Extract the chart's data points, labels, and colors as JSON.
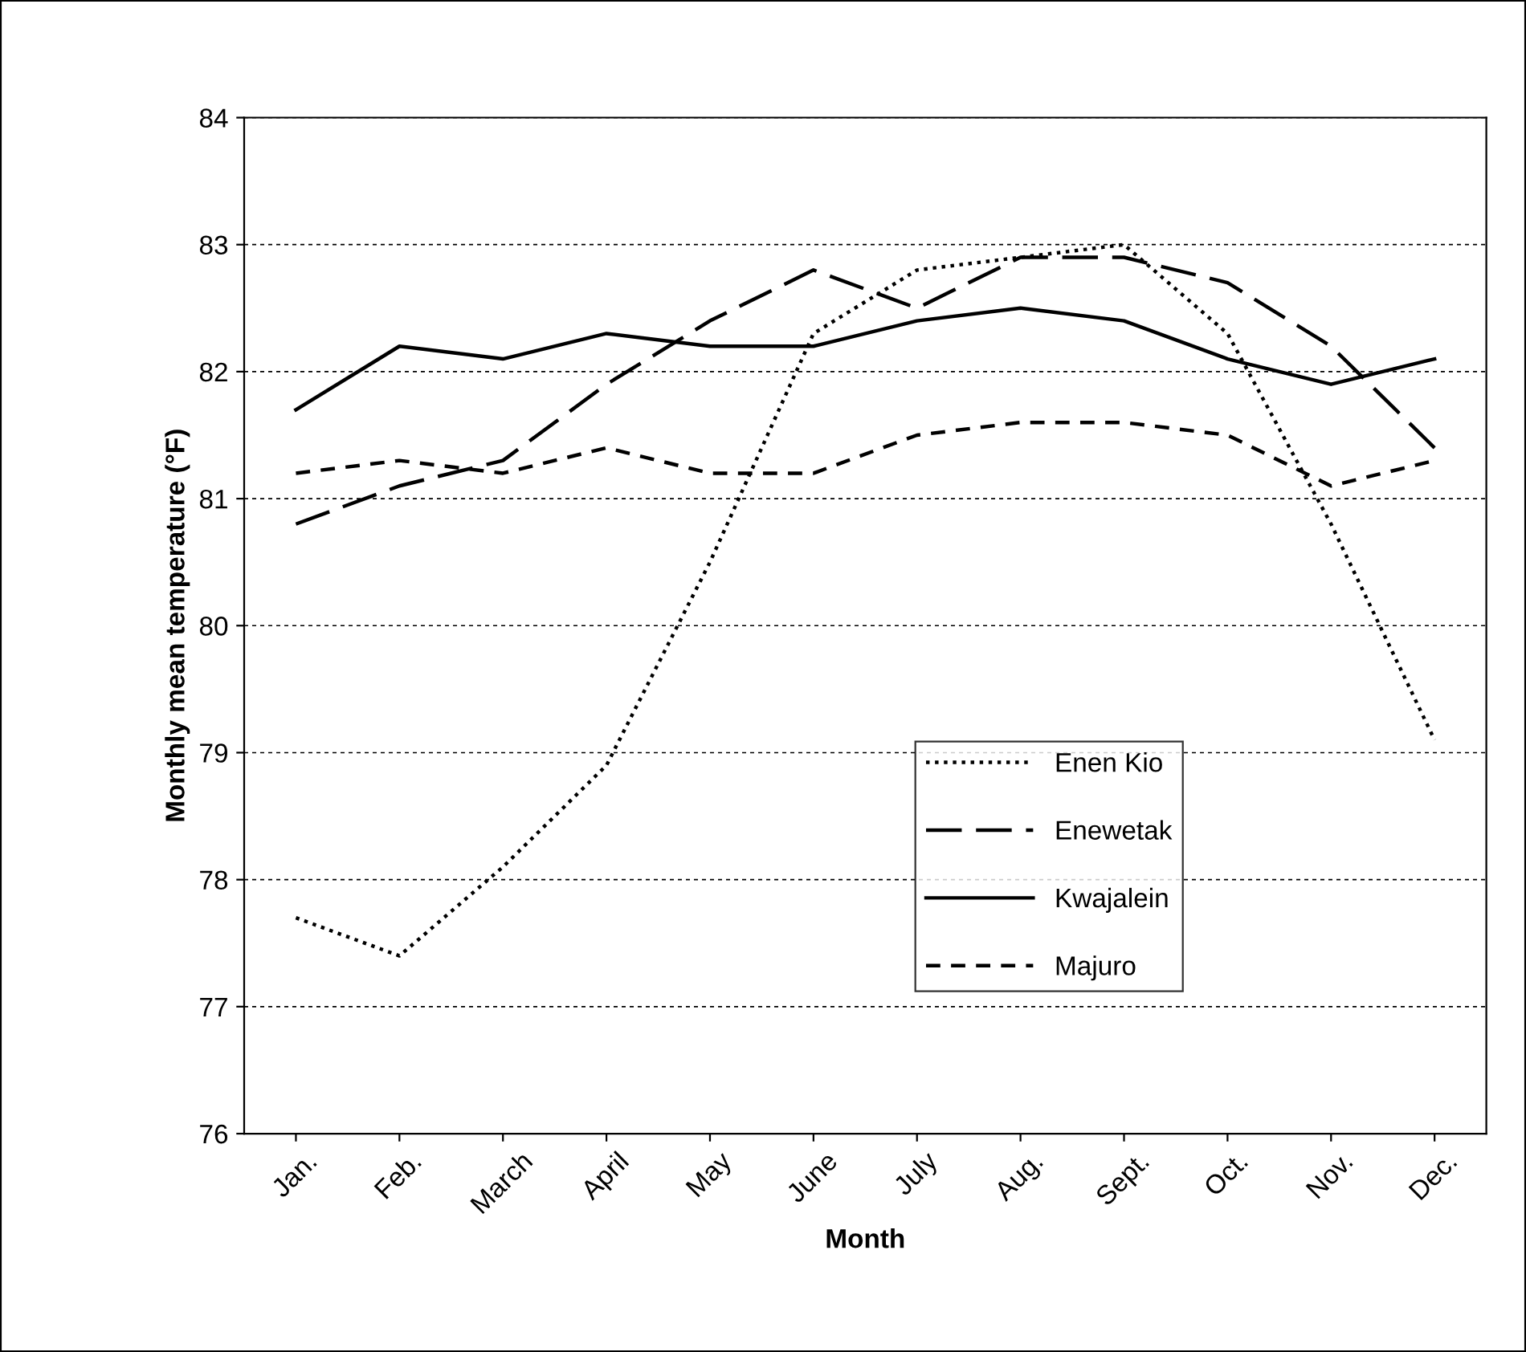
{
  "chart_data": {
    "type": "line",
    "xlabel": "Month",
    "ylabel": "Monthly mean temperature (°F)",
    "categories": [
      "Jan.",
      "Feb.",
      "March",
      "April",
      "May",
      "June",
      "July",
      "Aug.",
      "Sept.",
      "Oct.",
      "Nov.",
      "Dec."
    ],
    "series": [
      {
        "name": "Enen Kio",
        "color": "#000000",
        "line_style": "dotted",
        "values": [
          77.7,
          77.4,
          78.1,
          78.9,
          80.5,
          82.3,
          82.8,
          82.9,
          83.0,
          82.3,
          80.8,
          79.1
        ]
      },
      {
        "name": "Enewetak",
        "color": "#000000",
        "line_style": "longdash",
        "values": [
          80.8,
          81.1,
          81.3,
          81.9,
          82.4,
          82.8,
          82.5,
          82.9,
          82.9,
          82.7,
          82.2,
          81.4
        ]
      },
      {
        "name": "Kwajalein",
        "color": "#000000",
        "line_style": "solid",
        "values": [
          81.7,
          82.2,
          82.1,
          82.3,
          82.2,
          82.2,
          82.4,
          82.5,
          82.4,
          82.1,
          81.9,
          82.1
        ]
      },
      {
        "name": "Majuro",
        "color": "#000000",
        "line_style": "dashed",
        "values": [
          81.2,
          81.3,
          81.2,
          81.4,
          81.2,
          81.2,
          81.5,
          81.6,
          81.6,
          81.5,
          81.1,
          81.3
        ]
      }
    ],
    "ylim": [
      76,
      84
    ],
    "yticks": [
      76,
      77,
      78,
      79,
      80,
      81,
      82,
      83,
      84
    ],
    "grid": "y",
    "legend": "bottom right",
    "marker": "none"
  }
}
